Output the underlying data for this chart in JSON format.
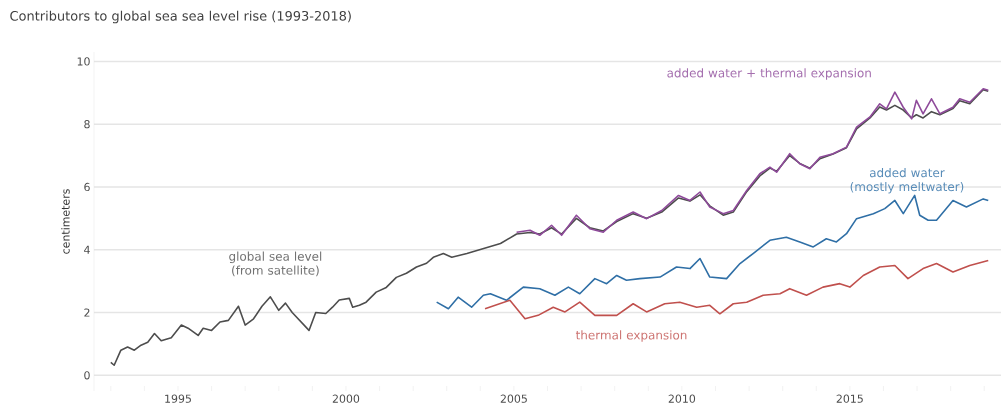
{
  "chart_data": {
    "type": "line",
    "title": "Contributors to global sea sea level rise (1993-2018)",
    "ylabel": "centimeters",
    "xlim": [
      1992.5,
      2019.5
    ],
    "ylim": [
      -0.5,
      10.3
    ],
    "yticks": [
      0,
      2,
      4,
      6,
      8,
      10
    ],
    "xticks": [
      {
        "value": 1993,
        "label": null
      },
      {
        "value": 1994,
        "label": null
      },
      1995,
      {
        "value": 1996,
        "label": null
      },
      {
        "value": 1997,
        "label": null
      },
      {
        "value": 1998,
        "label": null
      },
      {
        "value": 1999,
        "label": null
      },
      2000,
      {
        "value": 2001,
        "label": null
      },
      {
        "value": 2002,
        "label": null
      },
      {
        "value": 2003,
        "label": null
      },
      {
        "value": 2004,
        "label": null
      },
      2005,
      {
        "value": 2006,
        "label": null
      },
      {
        "value": 2007,
        "label": null
      },
      {
        "value": 2008,
        "label": null
      },
      {
        "value": 2009,
        "label": null
      },
      2010,
      {
        "value": 2011,
        "label": null
      },
      {
        "value": 2012,
        "label": null
      },
      {
        "value": 2013,
        "label": null
      },
      {
        "value": 2014,
        "label": null
      },
      2015,
      {
        "value": 2016,
        "label": null
      },
      {
        "value": 2017,
        "label": null
      },
      {
        "value": 2018,
        "label": null
      },
      {
        "value": 2019,
        "label": null
      }
    ],
    "grid": "y",
    "legend": false,
    "series": [
      {
        "name": "global sea level (from satellite)",
        "color": "#4d4d4d",
        "x": [
          1993.0,
          1993.1,
          1993.3,
          1993.5,
          1993.7,
          1993.9,
          1994.1,
          1994.3,
          1994.5,
          1994.8,
          1995.1,
          1995.3,
          1995.6,
          1995.75,
          1996.0,
          1996.25,
          1996.5,
          1996.8,
          1997.0,
          1997.25,
          1997.5,
          1997.75,
          1998.0,
          1998.2,
          1998.4,
          1998.9,
          1999.1,
          1999.4,
          1999.6,
          1999.8,
          2000.1,
          2000.2,
          2000.4,
          2000.6,
          2000.9,
          2001.2,
          2001.5,
          2001.8,
          2002.1,
          2002.4,
          2002.6,
          2002.9,
          2003.15,
          2003.6,
          2004.1,
          2004.6,
          2005.08,
          2005.48,
          2005.77,
          2006.12,
          2006.42,
          2006.86,
          2007.26,
          2007.66,
          2008.06,
          2008.55,
          2008.95,
          2009.4,
          2009.9,
          2010.24,
          2010.54,
          2010.83,
          2011.23,
          2011.53,
          2011.93,
          2012.32,
          2012.62,
          2012.82,
          2013.21,
          2013.51,
          2013.81,
          2014.11,
          2014.5,
          2014.9,
          2015.2,
          2015.6,
          2015.89,
          2016.09,
          2016.34,
          2016.59,
          2016.84,
          2016.98,
          2017.18,
          2017.43,
          2017.68,
          2018.07,
          2018.27,
          2018.57,
          2018.97,
          2019.12
        ],
        "values": [
          0.41,
          0.32,
          0.8,
          0.9,
          0.8,
          0.96,
          1.05,
          1.33,
          1.1,
          1.2,
          1.6,
          1.5,
          1.27,
          1.5,
          1.43,
          1.7,
          1.75,
          2.2,
          1.6,
          1.8,
          2.2,
          2.5,
          2.07,
          2.3,
          2.0,
          1.43,
          2.0,
          1.97,
          2.17,
          2.4,
          2.45,
          2.17,
          2.23,
          2.33,
          2.65,
          2.8,
          3.12,
          3.25,
          3.45,
          3.57,
          3.76,
          3.88,
          3.76,
          3.88,
          4.04,
          4.2,
          4.5,
          4.55,
          4.5,
          4.7,
          4.5,
          5.0,
          4.7,
          4.6,
          4.9,
          5.15,
          5.0,
          5.2,
          5.65,
          5.55,
          5.75,
          5.4,
          5.1,
          5.2,
          5.85,
          6.35,
          6.6,
          6.5,
          7.0,
          6.75,
          6.6,
          6.9,
          7.05,
          7.25,
          7.85,
          8.2,
          8.55,
          8.45,
          8.6,
          8.45,
          8.2,
          8.3,
          8.2,
          8.4,
          8.3,
          8.5,
          8.75,
          8.65,
          9.1,
          9.05
        ]
      },
      {
        "name": "added water + thermal expansion",
        "color": "#8e4a9a",
        "x": [
          2005.08,
          2005.48,
          2005.77,
          2006.12,
          2006.42,
          2006.86,
          2007.26,
          2007.66,
          2008.06,
          2008.55,
          2008.95,
          2009.4,
          2009.9,
          2010.24,
          2010.54,
          2010.83,
          2011.23,
          2011.53,
          2011.93,
          2012.32,
          2012.62,
          2012.82,
          2013.21,
          2013.51,
          2013.81,
          2014.11,
          2014.5,
          2014.9,
          2015.2,
          2015.6,
          2015.89,
          2016.09,
          2016.34,
          2016.59,
          2016.84,
          2016.98,
          2017.18,
          2017.43,
          2017.68,
          2018.07,
          2018.27,
          2018.57,
          2018.97,
          2019.12
        ],
        "values": [
          4.56,
          4.62,
          4.46,
          4.78,
          4.46,
          5.1,
          4.67,
          4.56,
          4.94,
          5.2,
          4.99,
          5.25,
          5.73,
          5.57,
          5.84,
          5.36,
          5.15,
          5.25,
          5.89,
          6.42,
          6.63,
          6.47,
          7.06,
          6.74,
          6.58,
          6.95,
          7.06,
          7.27,
          7.91,
          8.23,
          8.65,
          8.49,
          9.02,
          8.54,
          8.17,
          8.76,
          8.33,
          8.81,
          8.33,
          8.54,
          8.81,
          8.7,
          9.13,
          9.08
        ]
      },
      {
        "name": "added water (mostly meltwater)",
        "color": "#2f6fa6",
        "x": [
          2002.7,
          2003.05,
          2003.34,
          2003.74,
          2004.09,
          2004.3,
          2004.78,
          2005.28,
          2005.77,
          2006.22,
          2006.62,
          2006.96,
          2007.41,
          2007.76,
          2008.06,
          2008.35,
          2008.75,
          2009.35,
          2009.84,
          2010.24,
          2010.54,
          2010.83,
          2011.33,
          2011.73,
          2012.12,
          2012.62,
          2013.11,
          2013.51,
          2013.91,
          2014.3,
          2014.6,
          2014.9,
          2015.2,
          2015.7,
          2016.04,
          2016.34,
          2016.59,
          2016.93,
          2017.08,
          2017.33,
          2017.58,
          2018.07,
          2018.47,
          2018.97,
          2019.12
        ],
        "values": [
          2.33,
          2.12,
          2.49,
          2.17,
          2.55,
          2.6,
          2.39,
          2.81,
          2.76,
          2.55,
          2.81,
          2.6,
          3.08,
          2.92,
          3.18,
          3.03,
          3.08,
          3.13,
          3.45,
          3.4,
          3.72,
          3.13,
          3.08,
          3.56,
          3.88,
          4.3,
          4.4,
          4.25,
          4.09,
          4.35,
          4.25,
          4.51,
          4.99,
          5.15,
          5.31,
          5.57,
          5.15,
          5.73,
          5.1,
          4.94,
          4.94,
          5.57,
          5.36,
          5.62,
          5.57
        ]
      },
      {
        "name": "thermal expansion",
        "color": "#c0504d",
        "x": [
          2004.14,
          2004.88,
          2005.33,
          2005.72,
          2006.17,
          2006.52,
          2006.96,
          2007.41,
          2008.06,
          2008.55,
          2008.95,
          2009.49,
          2009.94,
          2010.44,
          2010.83,
          2011.13,
          2011.53,
          2011.93,
          2012.42,
          2012.92,
          2013.21,
          2013.71,
          2014.2,
          2014.7,
          2015.0,
          2015.4,
          2015.89,
          2016.34,
          2016.73,
          2017.18,
          2017.58,
          2018.07,
          2018.57,
          2019.12
        ],
        "values": [
          2.12,
          2.39,
          1.8,
          1.91,
          2.17,
          2.02,
          2.33,
          1.91,
          1.91,
          2.28,
          2.02,
          2.28,
          2.33,
          2.17,
          2.23,
          1.96,
          2.28,
          2.33,
          2.55,
          2.6,
          2.76,
          2.55,
          2.81,
          2.92,
          2.81,
          3.18,
          3.45,
          3.5,
          3.08,
          3.4,
          3.56,
          3.29,
          3.5,
          3.66
        ]
      }
    ]
  }
}
